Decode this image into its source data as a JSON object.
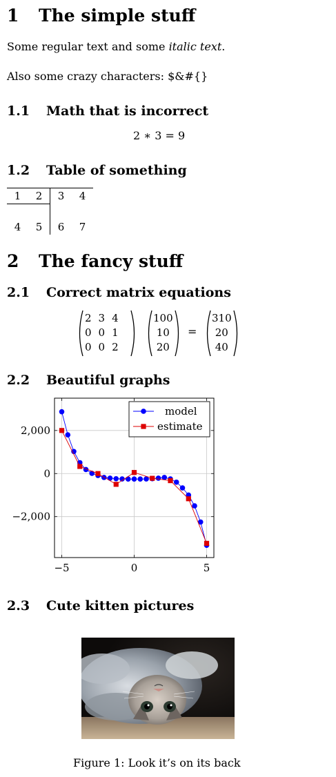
{
  "section1": {
    "number": "1",
    "title": "The simple stuff"
  },
  "paragraph1": {
    "text_a": "Some regular text and some ",
    "text_italic": "italic text",
    "text_b": "."
  },
  "paragraph2": {
    "text": "Also some crazy characters: $&#{}"
  },
  "section1_1": {
    "number": "1.1",
    "title": "Math that is incorrect"
  },
  "equation1": {
    "text": "2 ∗ 3 = 9"
  },
  "section1_2": {
    "number": "1.2",
    "title": "Table of something"
  },
  "table": {
    "rows": [
      [
        "1",
        "2",
        "3",
        "4"
      ],
      [
        "4",
        "5",
        "6",
        "7"
      ]
    ]
  },
  "section2": {
    "number": "2",
    "title": "The fancy stuff"
  },
  "section2_1": {
    "number": "2.1",
    "title": "Correct matrix equations"
  },
  "matrix_equation": {
    "A": [
      [
        "2",
        "3",
        "4"
      ],
      [
        "0",
        "0",
        "1"
      ],
      [
        "0",
        "0",
        "2"
      ]
    ],
    "b": [
      "100",
      "10",
      "20"
    ],
    "equals": "=",
    "result": [
      "310",
      "20",
      "40"
    ]
  },
  "section2_2": {
    "number": "2.2",
    "title": "Beautiful graphs"
  },
  "chart_data": {
    "type": "line",
    "title": "",
    "xlabel": "",
    "ylabel": "",
    "xlim": [
      -5.5,
      5.5
    ],
    "ylim": [
      -3900,
      3500
    ],
    "xticks": [
      -5,
      0,
      5
    ],
    "xtick_labels": [
      "−5",
      "0",
      "5"
    ],
    "yticks": [
      -2000,
      0,
      2000
    ],
    "ytick_labels": [
      "−2,000",
      "0",
      "2,000"
    ],
    "grid": true,
    "legend_position": "top-right",
    "series": [
      {
        "name": "model",
        "color": "#0000ff",
        "marker": "circle",
        "x": [
          -5,
          -4.583,
          -4.167,
          -3.75,
          -3.333,
          -2.917,
          -2.5,
          -2.083,
          -1.667,
          -1.25,
          -0.833,
          -0.417,
          0,
          0.417,
          0.833,
          1.25,
          1.667,
          2.083,
          2.5,
          2.917,
          3.333,
          3.75,
          4.167,
          4.583,
          5
        ],
        "y": [
          2870,
          1795,
          1025,
          505,
          185,
          10,
          -90,
          -180,
          -215,
          -240,
          -250,
          -255,
          -255,
          -255,
          -250,
          -240,
          -215,
          -180,
          -250,
          -400,
          -665,
          -1000,
          -1500,
          -2250,
          -3330
        ]
      },
      {
        "name": "estimate",
        "color": "#dd0000",
        "marker": "square",
        "x": [
          -5,
          -3.75,
          -2.5,
          -1.25,
          0,
          1.25,
          2.5,
          3.75,
          5
        ],
        "y": [
          2000,
          330,
          0,
          -500,
          50,
          -220,
          -330,
          -1170,
          -3240
        ]
      }
    ]
  },
  "section2_3": {
    "number": "2.3",
    "title": "Cute kitten pictures"
  },
  "figure": {
    "caption": "Figure 1: Look it’s on its back"
  }
}
